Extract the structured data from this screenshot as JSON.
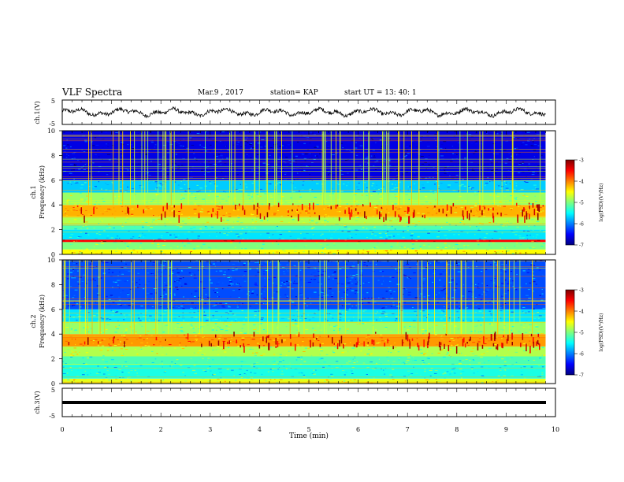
{
  "header": {
    "title": "VLF Spectra",
    "date": "Mar.9 , 2017",
    "station": "station= KAP",
    "start": "start  UT =   13: 40: 1"
  },
  "chart_data": [
    {
      "type": "line",
      "panel": "ch1-waveform",
      "ylabel": "ch.1(V)",
      "ylim": [
        -5,
        5
      ],
      "yticks": [
        "5",
        "-5"
      ],
      "xlim": [
        0,
        10
      ],
      "x_extent_min": 9.8,
      "description_values": {
        "mean_level_V": 0,
        "noise_amplitude_V": 1.5
      }
    },
    {
      "type": "heatmap",
      "panel": "ch1-spectrogram",
      "ylabel": "ch.1\nFrequency (kHz)",
      "ylabel_ch": "ch.1",
      "ylabel_freq": "Frequency (kHz)",
      "ylim": [
        0,
        10
      ],
      "yticks": [
        "0",
        "2",
        "4",
        "6",
        "8",
        "10"
      ],
      "xlim": [
        0,
        9.8
      ],
      "colorbar": {
        "label": "log(PSD)(V²/Hz)",
        "range": [
          -7,
          -3
        ],
        "ticks": [
          "-3",
          "-4",
          "-5",
          "-6",
          "-7"
        ]
      },
      "bands_kHz": [
        {
          "from": 0.0,
          "to": 0.4,
          "level": -4.5
        },
        {
          "from": 0.4,
          "to": 1.0,
          "level": -5.0
        },
        {
          "from": 1.0,
          "to": 1.2,
          "level": -3.5
        },
        {
          "from": 1.2,
          "to": 2.0,
          "level": -5.6
        },
        {
          "from": 2.0,
          "to": 2.4,
          "level": -5.2
        },
        {
          "from": 2.4,
          "to": 3.0,
          "level": -4.8
        },
        {
          "from": 3.0,
          "to": 4.0,
          "level": -4.2
        },
        {
          "from": 4.0,
          "to": 5.0,
          "level": -4.9
        },
        {
          "from": 5.0,
          "to": 6.0,
          "level": -5.7
        },
        {
          "from": 6.0,
          "to": 10.0,
          "level": -6.6
        }
      ]
    },
    {
      "type": "heatmap",
      "panel": "ch2-spectrogram",
      "ylabel": "ch.2\nFrequency (kHz)",
      "ylabel_ch": "ch.2",
      "ylabel_freq": "Frequency (kHz)",
      "ylim": [
        0,
        10
      ],
      "yticks": [
        "0",
        "2",
        "4",
        "6",
        "8",
        "10"
      ],
      "xlim": [
        0,
        9.8
      ],
      "colorbar": {
        "label": "log(PSD)(V²/Hz)",
        "range": [
          -7,
          -3
        ],
        "ticks": [
          "-3",
          "-4",
          "-5",
          "-6",
          "-7"
        ]
      },
      "bands_kHz": [
        {
          "from": 0.0,
          "to": 0.4,
          "level": -4.6
        },
        {
          "from": 0.4,
          "to": 1.5,
          "level": -5.4
        },
        {
          "from": 1.5,
          "to": 2.2,
          "level": -5.2
        },
        {
          "from": 2.2,
          "to": 3.0,
          "level": -4.8
        },
        {
          "from": 3.0,
          "to": 4.0,
          "level": -4.1
        },
        {
          "from": 4.0,
          "to": 5.0,
          "level": -4.9
        },
        {
          "from": 5.0,
          "to": 6.0,
          "level": -5.6
        },
        {
          "from": 6.0,
          "to": 10.0,
          "level": -6.2
        }
      ]
    },
    {
      "type": "line",
      "panel": "ch3-waveform",
      "ylabel": "ch.3(V)",
      "ylim": [
        -5,
        5
      ],
      "yticks": [
        "5",
        "-5"
      ],
      "xlim": [
        0,
        10
      ],
      "constant_level_V": 0,
      "xlabel": "Time (min)",
      "xticks": [
        "0",
        "1",
        "2",
        "3",
        "4",
        "5",
        "6",
        "7",
        "8",
        "9",
        "10"
      ]
    }
  ],
  "colors": {
    "colormap": [
      "#00007f",
      "#0000ff",
      "#007fff",
      "#00ffff",
      "#7fff7f",
      "#ffff00",
      "#ff7f00",
      "#ff0000",
      "#7f0000"
    ]
  }
}
